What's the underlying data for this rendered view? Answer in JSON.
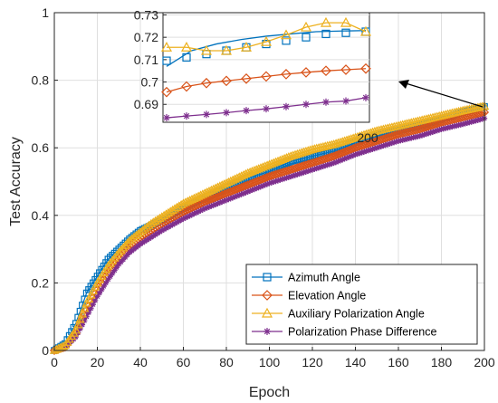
{
  "chart_data": {
    "type": "line",
    "xlabel": "Epoch",
    "ylabel": "Test Accuracy",
    "xlim": [
      0,
      200
    ],
    "ylim": [
      0,
      1
    ],
    "xticks": [
      0,
      20,
      40,
      60,
      80,
      100,
      120,
      140,
      160,
      180,
      200
    ],
    "yticks": [
      0,
      0.2,
      0.4,
      0.6,
      0.8,
      1
    ],
    "grid": true,
    "legend_position": "bottom-right",
    "series": [
      {
        "name": "Azimuth Angle",
        "color": "#0072BD",
        "marker": "square",
        "x": [
          0,
          5,
          10,
          15,
          20,
          25,
          30,
          35,
          40,
          45,
          50,
          60,
          70,
          80,
          90,
          100,
          110,
          120,
          130,
          140,
          150,
          160,
          170,
          180,
          190,
          200
        ],
        "y": [
          0.0,
          0.02,
          0.08,
          0.17,
          0.22,
          0.27,
          0.3,
          0.33,
          0.355,
          0.37,
          0.385,
          0.42,
          0.45,
          0.48,
          0.51,
          0.53,
          0.56,
          0.575,
          0.59,
          0.615,
          0.635,
          0.65,
          0.665,
          0.685,
          0.705,
          0.722
        ]
      },
      {
        "name": "Elevation Angle",
        "color": "#D95319",
        "marker": "diamond",
        "x": [
          0,
          5,
          10,
          15,
          20,
          25,
          30,
          35,
          40,
          45,
          50,
          60,
          70,
          80,
          90,
          100,
          110,
          120,
          130,
          140,
          150,
          160,
          170,
          180,
          190,
          200
        ],
        "y": [
          0.0,
          0.01,
          0.05,
          0.12,
          0.18,
          0.23,
          0.27,
          0.31,
          0.335,
          0.355,
          0.375,
          0.41,
          0.44,
          0.465,
          0.49,
          0.515,
          0.535,
          0.555,
          0.575,
          0.6,
          0.62,
          0.64,
          0.655,
          0.675,
          0.69,
          0.705
        ]
      },
      {
        "name": "Auxiliary Polarization Angle",
        "color": "#EDB120",
        "marker": "triangle",
        "x": [
          0,
          5,
          10,
          15,
          20,
          25,
          30,
          35,
          40,
          45,
          50,
          60,
          70,
          80,
          90,
          100,
          110,
          120,
          130,
          140,
          150,
          160,
          170,
          180,
          190,
          200
        ],
        "y": [
          0.0,
          0.015,
          0.06,
          0.14,
          0.2,
          0.25,
          0.29,
          0.325,
          0.35,
          0.375,
          0.395,
          0.435,
          0.465,
          0.495,
          0.525,
          0.55,
          0.575,
          0.595,
          0.61,
          0.63,
          0.65,
          0.665,
          0.68,
          0.695,
          0.71,
          0.723
        ]
      },
      {
        "name": "Polarization Phase Difference",
        "color": "#7E2F8E",
        "marker": "asterisk",
        "x": [
          0,
          5,
          10,
          15,
          20,
          25,
          30,
          35,
          40,
          45,
          50,
          60,
          70,
          80,
          90,
          100,
          110,
          120,
          130,
          140,
          150,
          160,
          170,
          180,
          190,
          200
        ],
        "y": [
          0.0,
          0.008,
          0.04,
          0.1,
          0.16,
          0.21,
          0.255,
          0.29,
          0.315,
          0.335,
          0.355,
          0.39,
          0.42,
          0.445,
          0.47,
          0.495,
          0.515,
          0.535,
          0.555,
          0.58,
          0.6,
          0.62,
          0.635,
          0.655,
          0.67,
          0.687
        ]
      }
    ],
    "inset": {
      "xlim": [
        0,
        200
      ],
      "ylim": [
        0.682,
        0.731
      ],
      "yticks": [
        0.69,
        0.7,
        0.71,
        0.72,
        0.73
      ],
      "xtick_label": "200",
      "series": [
        {
          "name": "Azimuth Angle",
          "marker_x": [
            0,
            20,
            40,
            60,
            80,
            100,
            120,
            140,
            160,
            180,
            200
          ],
          "marker_y": [
            0.7095,
            0.711,
            0.7125,
            0.714,
            0.7155,
            0.717,
            0.7185,
            0.72,
            0.7215,
            0.722,
            0.7225
          ],
          "curve": [
            0.707,
            0.714,
            0.717,
            0.719,
            0.7205,
            0.7215,
            0.7225,
            0.7228,
            0.723
          ]
        },
        {
          "name": "Elevation Angle",
          "marker_x": [
            0,
            20,
            40,
            60,
            80,
            100,
            120,
            140,
            160,
            180,
            200
          ],
          "marker_y": [
            0.6955,
            0.698,
            0.6995,
            0.7005,
            0.7015,
            0.7025,
            0.7035,
            0.7043,
            0.705,
            0.7055,
            0.706
          ],
          "curve": null
        },
        {
          "name": "Auxiliary Polarization Angle",
          "marker_x": [
            0,
            20,
            40,
            60,
            80,
            100,
            120,
            140,
            160,
            180,
            200
          ],
          "marker_y": [
            0.7155,
            0.7155,
            0.714,
            0.714,
            0.7155,
            0.718,
            0.721,
            0.7245,
            0.7265,
            0.7265,
            0.7225
          ],
          "curve": null
        },
        {
          "name": "Polarization Phase Difference",
          "marker_x": [
            0,
            20,
            40,
            60,
            80,
            100,
            120,
            140,
            160,
            180,
            200
          ],
          "marker_y": [
            0.684,
            0.6848,
            0.6855,
            0.6863,
            0.6872,
            0.688,
            0.689,
            0.69,
            0.691,
            0.6915,
            0.693
          ],
          "curve": null
        }
      ]
    }
  }
}
